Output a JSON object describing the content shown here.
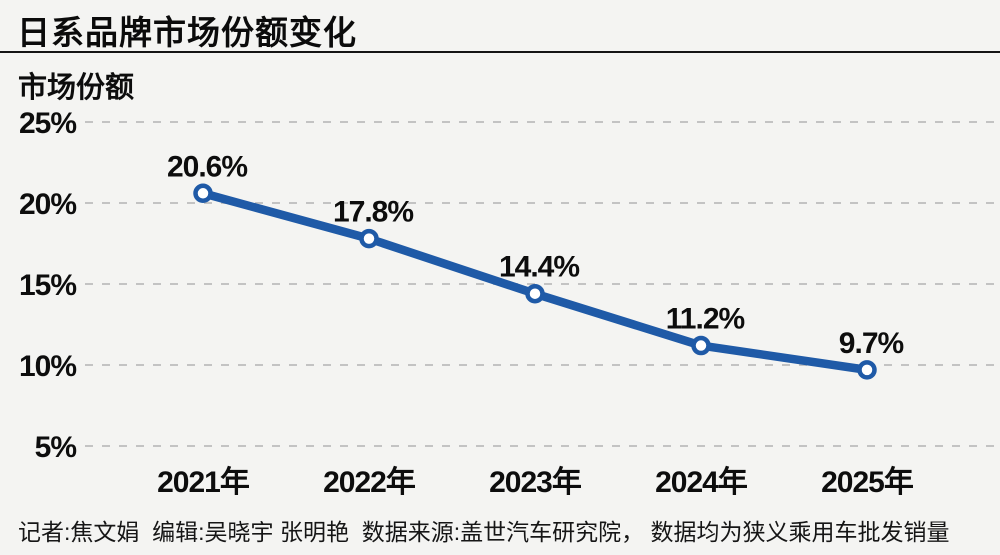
{
  "header": {
    "title": "日系品牌市场份额变化"
  },
  "chart_data": {
    "type": "line",
    "title": "日系品牌市场份额变化",
    "ylabel": "市场份额",
    "xlabel": "",
    "categories": [
      "2021年",
      "2022年",
      "2023年",
      "2024年",
      "2025年"
    ],
    "values": [
      20.6,
      17.8,
      14.4,
      11.2,
      9.7
    ],
    "point_labels": [
      "20.6%",
      "17.8%",
      "14.4%",
      "11.2%",
      "9.7%"
    ],
    "y_ticks": [
      "25%",
      "20%",
      "15%",
      "10%",
      "5%"
    ],
    "y_tick_values": [
      25,
      20,
      15,
      10,
      5
    ],
    "ylim": [
      5,
      25
    ],
    "grid": "horizontal-dashed",
    "legend": "none",
    "line_color": "#1f5aa7",
    "marker": "open-circle",
    "marker_fill": "#ffffff",
    "background_color": "#f4f4f2"
  },
  "footer": {
    "credits": "记者:焦文娟  编辑:吴晓宇 张明艳  数据来源:盖世汽车研究院， 数据均为狭义乘用车批发销量"
  }
}
